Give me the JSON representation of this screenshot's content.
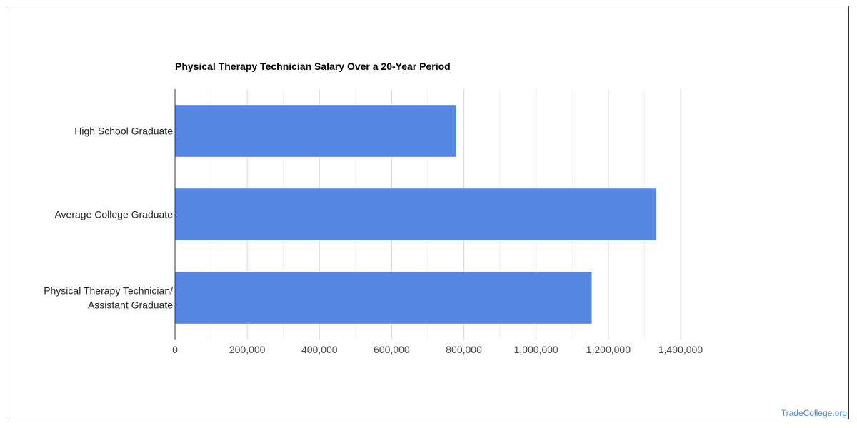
{
  "chart_data": {
    "type": "bar",
    "orientation": "horizontal",
    "title": "Physical Therapy Technician Salary Over a 20-Year Period",
    "categories": [
      [
        "High School Graduate"
      ],
      [
        "Average College Graduate"
      ],
      [
        "Physical Therapy Technician/",
        "Assistant Graduate"
      ]
    ],
    "values": [
      779000,
      1333000,
      1154000
    ],
    "xlim": [
      0,
      1400000
    ],
    "xticks": [
      0,
      200000,
      400000,
      600000,
      800000,
      1000000,
      1200000,
      1400000
    ],
    "xtick_labels": [
      "0",
      "200,000",
      "400,000",
      "600,000",
      "800,000",
      "1,000,000",
      "1,200,000",
      "1,400,000"
    ],
    "grid": true,
    "legend": "none",
    "bar_color": "#5486e2",
    "gridline_color": "#d9d9d9"
  },
  "source": {
    "label": "TradeCollege.org"
  }
}
